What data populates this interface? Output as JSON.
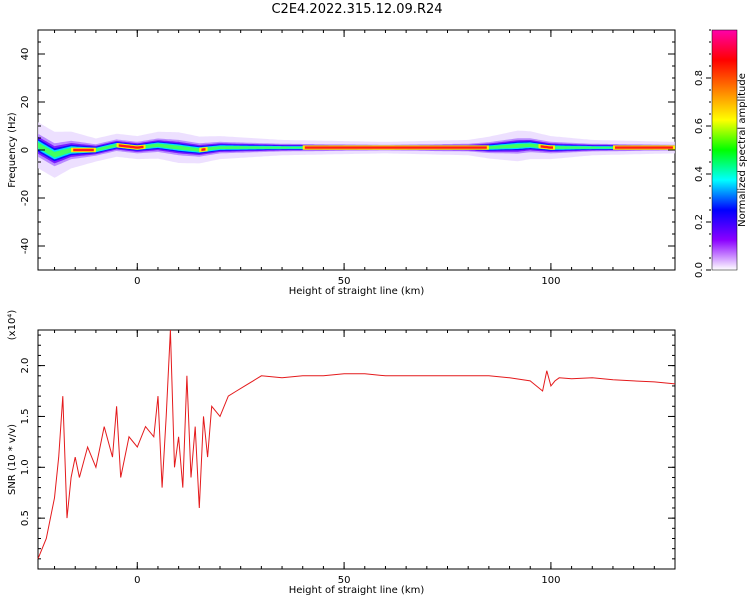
{
  "title": "C2E4.2022.315.12.09.R24",
  "chart_data": [
    {
      "type": "heatmap",
      "xlabel": "Height of straight line (km)",
      "ylabel": "Frequency (Hz)",
      "xlim": [
        -24,
        130
      ],
      "ylim": [
        -50,
        50
      ],
      "xticks": [
        0,
        50,
        100
      ],
      "yticks": [
        40,
        20,
        0,
        -20,
        -40
      ],
      "colorbar": {
        "label": "Normalized spectral amplitude",
        "range": [
          0.0,
          1.0
        ],
        "ticks": [
          "0.0",
          "0.2",
          "0.4",
          "0.6",
          "0.8"
        ],
        "colors": [
          "#ffffff",
          "#8b00ff",
          "#0000ff",
          "#00ffff",
          "#00ff00",
          "#ffff00",
          "#ff8000",
          "#ff0000",
          "#ff00aa"
        ]
      },
      "band": {
        "center_hz": [
          [
            -24,
            2
          ],
          [
            -22,
            0
          ],
          [
            -20,
            -2
          ],
          [
            -16,
            0
          ],
          [
            -10,
            0
          ],
          [
            -5,
            2
          ],
          [
            0,
            1
          ],
          [
            5,
            2
          ],
          [
            10,
            1
          ],
          [
            15,
            0
          ],
          [
            20,
            1
          ],
          [
            30,
            1
          ],
          [
            50,
            1
          ],
          [
            70,
            1
          ],
          [
            85,
            1
          ],
          [
            95,
            2
          ],
          [
            100,
            1
          ],
          [
            110,
            1
          ],
          [
            130,
            1
          ]
        ],
        "halfwidth_hz": [
          [
            -24,
            6
          ],
          [
            -20,
            6
          ],
          [
            -10,
            3
          ],
          [
            0,
            3
          ],
          [
            10,
            4
          ],
          [
            20,
            3
          ],
          [
            35,
            2
          ],
          [
            60,
            1.5
          ],
          [
            80,
            2
          ],
          [
            92,
            4
          ],
          [
            100,
            3
          ],
          [
            110,
            2
          ],
          [
            130,
            1.5
          ]
        ],
        "peak_segments_km": [
          [
            -16,
            -10
          ],
          [
            -5,
            2
          ],
          [
            15,
            17
          ],
          [
            40,
            85
          ],
          [
            97,
            101
          ],
          [
            115,
            130
          ]
        ]
      }
    },
    {
      "type": "line",
      "xlabel": "Height of straight line (km)",
      "ylabel": "SNR (10 * v/v)",
      "y_multiplier": "(x10⁴)",
      "xlim": [
        -24,
        130
      ],
      "ylim": [
        0.0,
        2.35
      ],
      "xticks": [
        0,
        50,
        100
      ],
      "yticks": [
        0.5,
        1.0,
        1.5,
        2.0
      ],
      "color": "#e41a1c",
      "x": [
        -24,
        -22,
        -20,
        -19,
        -18,
        -17,
        -16,
        -15,
        -14,
        -12,
        -10,
        -8,
        -6,
        -5,
        -4,
        -2,
        0,
        2,
        4,
        5,
        6,
        7,
        8,
        9,
        10,
        11,
        12,
        13,
        14,
        15,
        16,
        17,
        18,
        20,
        22,
        24,
        26,
        28,
        30,
        35,
        40,
        45,
        50,
        55,
        60,
        65,
        70,
        75,
        80,
        85,
        90,
        95,
        98,
        99,
        100,
        101,
        102,
        105,
        110,
        115,
        120,
        125,
        130
      ],
      "values": [
        0.1,
        0.3,
        0.7,
        1.1,
        1.7,
        0.5,
        0.9,
        1.1,
        0.9,
        1.2,
        1.0,
        1.4,
        1.1,
        1.6,
        0.9,
        1.3,
        1.2,
        1.4,
        1.3,
        1.7,
        0.8,
        1.5,
        2.35,
        1.0,
        1.3,
        0.8,
        1.9,
        0.9,
        1.4,
        0.6,
        1.5,
        1.1,
        1.6,
        1.5,
        1.7,
        1.75,
        1.8,
        1.85,
        1.9,
        1.88,
        1.9,
        1.9,
        1.92,
        1.92,
        1.9,
        1.9,
        1.9,
        1.9,
        1.9,
        1.9,
        1.88,
        1.85,
        1.75,
        1.95,
        1.8,
        1.85,
        1.88,
        1.87,
        1.88,
        1.86,
        1.85,
        1.84,
        1.82
      ]
    }
  ]
}
